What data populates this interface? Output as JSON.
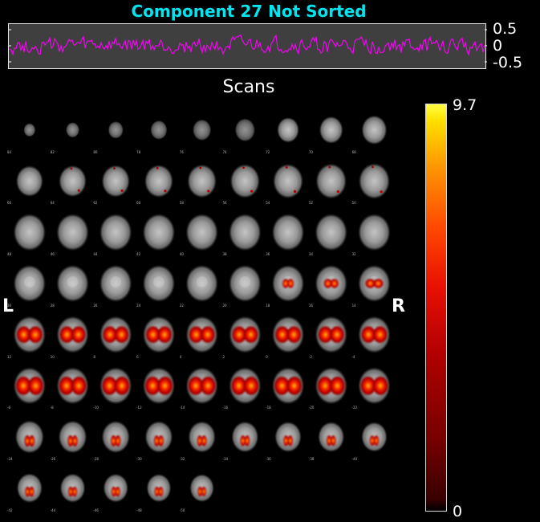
{
  "figure": {
    "title": "Component 27 Not Sorted",
    "timecourse": {
      "yticks": [
        "0.5",
        "0",
        "-0.5"
      ],
      "line_color": "#ff00ff"
    },
    "montage": {
      "title": "Scans",
      "left_label": "L",
      "right_label": "R",
      "columns": 9,
      "slice_labels": [
        "84",
        "82",
        "80",
        "78",
        "76",
        "74",
        "72",
        "70",
        "68",
        "66",
        "64",
        "62",
        "60",
        "58",
        "56",
        "54",
        "52",
        "50",
        "48",
        "46",
        "44",
        "42",
        "40",
        "38",
        "36",
        "34",
        "32",
        "30",
        "28",
        "26",
        "24",
        "22",
        "20",
        "18",
        "16",
        "14",
        "12",
        "10",
        "8",
        "6",
        "4",
        "2",
        "0",
        "-2",
        "-4",
        "-6",
        "-8",
        "-10",
        "-12",
        "-14",
        "-16",
        "-18",
        "-20",
        "-22",
        "-24",
        "-26",
        "-28",
        "-30",
        "-32",
        "-34",
        "-36",
        "-38",
        "-40",
        "-42",
        "-44",
        "-46",
        "-48",
        "-50"
      ]
    },
    "colorbar": {
      "max_label": "9.7",
      "min_label": "0",
      "colors": [
        "#000000",
        "#7a0000",
        "#e81000",
        "#ff9800",
        "#ffff40"
      ]
    }
  }
}
